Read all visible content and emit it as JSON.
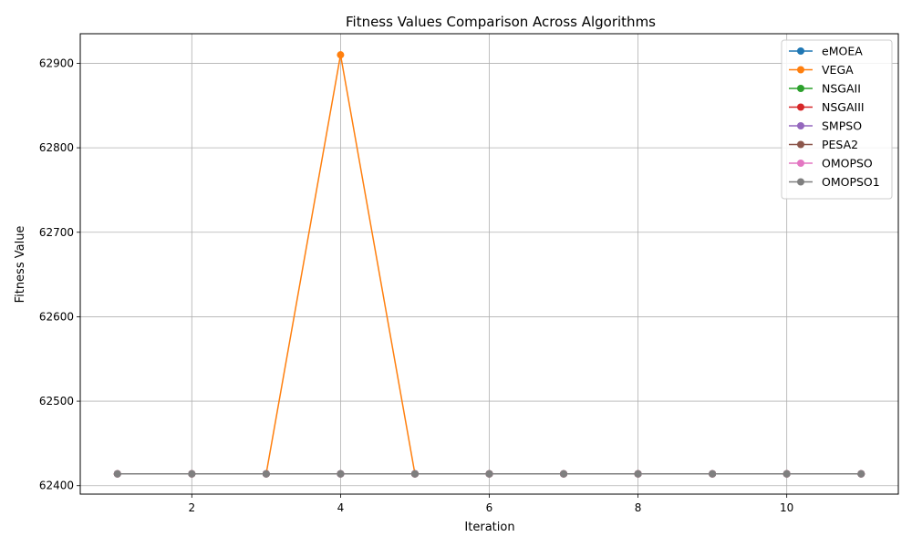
{
  "chart_data": {
    "type": "line",
    "title": "Fitness Values Comparison Across Algorithms",
    "xlabel": "Iteration",
    "ylabel": "Fitness Value",
    "xlim": [
      0.5,
      11.5
    ],
    "ylim": [
      62390,
      62935
    ],
    "xticks": [
      2,
      4,
      6,
      8,
      10
    ],
    "yticks": [
      62400,
      62500,
      62600,
      62700,
      62800,
      62900
    ],
    "grid": true,
    "legend_position": "top-right",
    "x": [
      1,
      2,
      3,
      4,
      5,
      6,
      7,
      8,
      9,
      10,
      11
    ],
    "series": [
      {
        "name": "eMOEA",
        "color": "#1f77b4",
        "values": [
          62414,
          62414,
          62414,
          62414,
          62414,
          62414,
          62414,
          62414,
          62414,
          62414,
          62414
        ]
      },
      {
        "name": "VEGA",
        "color": "#ff7f0e",
        "values": [
          62414,
          62414,
          62414,
          62910,
          62414,
          62414,
          62414,
          62414,
          62414,
          62414,
          62414
        ]
      },
      {
        "name": "NSGAII",
        "color": "#2ca02c",
        "values": [
          62414,
          62414,
          62414,
          62414,
          62414,
          62414,
          62414,
          62414,
          62414,
          62414,
          62414
        ]
      },
      {
        "name": "NSGAIII",
        "color": "#d62728",
        "values": [
          62414,
          62414,
          62414,
          62414,
          62414,
          62414,
          62414,
          62414,
          62414,
          62414,
          62414
        ]
      },
      {
        "name": "SMPSO",
        "color": "#9467bd",
        "values": [
          62414,
          62414,
          62414,
          62414,
          62414,
          62414,
          62414,
          62414,
          62414,
          62414,
          62414
        ]
      },
      {
        "name": "PESA2",
        "color": "#8c564b",
        "values": [
          62414,
          62414,
          62414,
          62414,
          62414,
          62414,
          62414,
          62414,
          62414,
          62414,
          62414
        ]
      },
      {
        "name": "OMOPSO",
        "color": "#e377c2",
        "values": [
          62414,
          62414,
          62414,
          62414,
          62414,
          62414,
          62414,
          62414,
          62414,
          62414,
          62414
        ]
      },
      {
        "name": "OMOPSO1",
        "color": "#7f7f7f",
        "values": [
          62414,
          62414,
          62414,
          62414,
          62414,
          62414,
          62414,
          62414,
          62414,
          62414,
          62414
        ]
      }
    ]
  }
}
